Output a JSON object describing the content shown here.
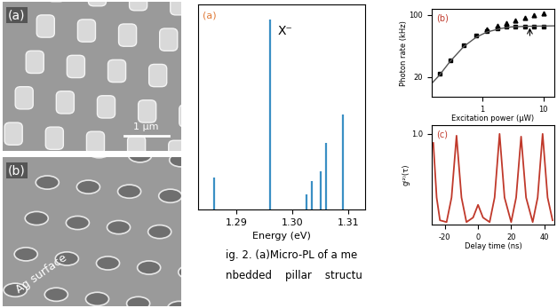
{
  "sem_images": [
    {
      "label": "(a)",
      "scale_bar": "1 μm"
    },
    {
      "label": "(b)",
      "annotation": "Ag surface"
    }
  ],
  "chart_data": [
    {
      "type": "stem",
      "panel_label": "(a)",
      "xlabel": "Energy (eV)",
      "x": [
        1.286,
        1.296,
        1.3025,
        1.3035,
        1.305,
        1.306,
        1.309
      ],
      "values": [
        0.17,
        1.0,
        0.08,
        0.15,
        0.2,
        0.35,
        0.5
      ],
      "color": "#3a8fc4",
      "annotations": [
        {
          "text": "X⁻",
          "x": 1.296
        }
      ],
      "xlim": [
        1.283,
        1.313
      ],
      "ylim": [
        0,
        1.08
      ],
      "xticks": [
        1.29,
        {
          "value": 1.3,
          "label": "1.30"
        },
        1.31
      ],
      "tick_labels": "x"
    },
    {
      "type": "scatter",
      "panel_label": "(b)",
      "log": true,
      "xlabel": "Excitation power (μW)",
      "ylabel": "Photon rate (kHz)",
      "xlim": [
        0.15,
        15
      ],
      "ylim": [
        12,
        115
      ],
      "xticks": [
        1,
        10
      ],
      "yticks": [
        20,
        100
      ],
      "series": [
        {
          "type": "scatter",
          "marker": "s",
          "color": "#000000",
          "x": [
            0.2,
            0.3,
            0.5,
            0.8,
            1.2,
            1.8,
            2.5,
            3.5,
            5,
            7,
            10
          ],
          "values": [
            22,
            31,
            45,
            58,
            66,
            71,
            73,
            74,
            74,
            74,
            74
          ]
        },
        {
          "type": "scatter",
          "marker": "^",
          "color": "#000000",
          "x": [
            1.2,
            1.8,
            2.5,
            3.5,
            5,
            7,
            10
          ],
          "values": [
            68,
            75,
            80,
            86,
            92,
            98,
            104
          ]
        },
        {
          "type": "line",
          "color": "#555555",
          "x": [
            0.15,
            0.2,
            0.3,
            0.5,
            0.8,
            1.2,
            2,
            3,
            5,
            8,
            15
          ],
          "values": [
            17,
            21,
            30,
            44,
            56,
            64,
            70,
            73,
            74,
            74.5,
            75
          ]
        }
      ],
      "arrow": {
        "x": 6,
        "y": 76
      }
    },
    {
      "type": "line",
      "panel_label": "(c)",
      "xlabel": "Delay time (ns)",
      "ylabel": "g⁽²⁾(τ)",
      "xlim": [
        -28,
        46
      ],
      "ylim": [
        0,
        1.1
      ],
      "xticks": [
        -20,
        0,
        20,
        40
      ],
      "yticks": [
        {
          "value": 1.0,
          "label": "1.0"
        }
      ],
      "x": [
        -27,
        -25,
        -23,
        -19,
        -16,
        -13,
        -10,
        -7,
        -3,
        0,
        3,
        7,
        10,
        13,
        16,
        20,
        23,
        26,
        29,
        33,
        36,
        39,
        42,
        45
      ],
      "series": [
        {
          "color": "#c0392b",
          "values": [
            0.9,
            0.3,
            0.05,
            0.03,
            0.3,
            0.98,
            0.3,
            0.03,
            0.08,
            0.22,
            0.08,
            0.03,
            0.3,
            1.0,
            0.3,
            0.03,
            0.3,
            0.97,
            0.3,
            0.03,
            0.3,
            1.0,
            0.3,
            0.05
          ]
        }
      ]
    }
  ],
  "caption": {
    "lines": [
      "ig. 2. (a)Micro-PL of a me",
      "nbedded    pillar    structu"
    ]
  }
}
